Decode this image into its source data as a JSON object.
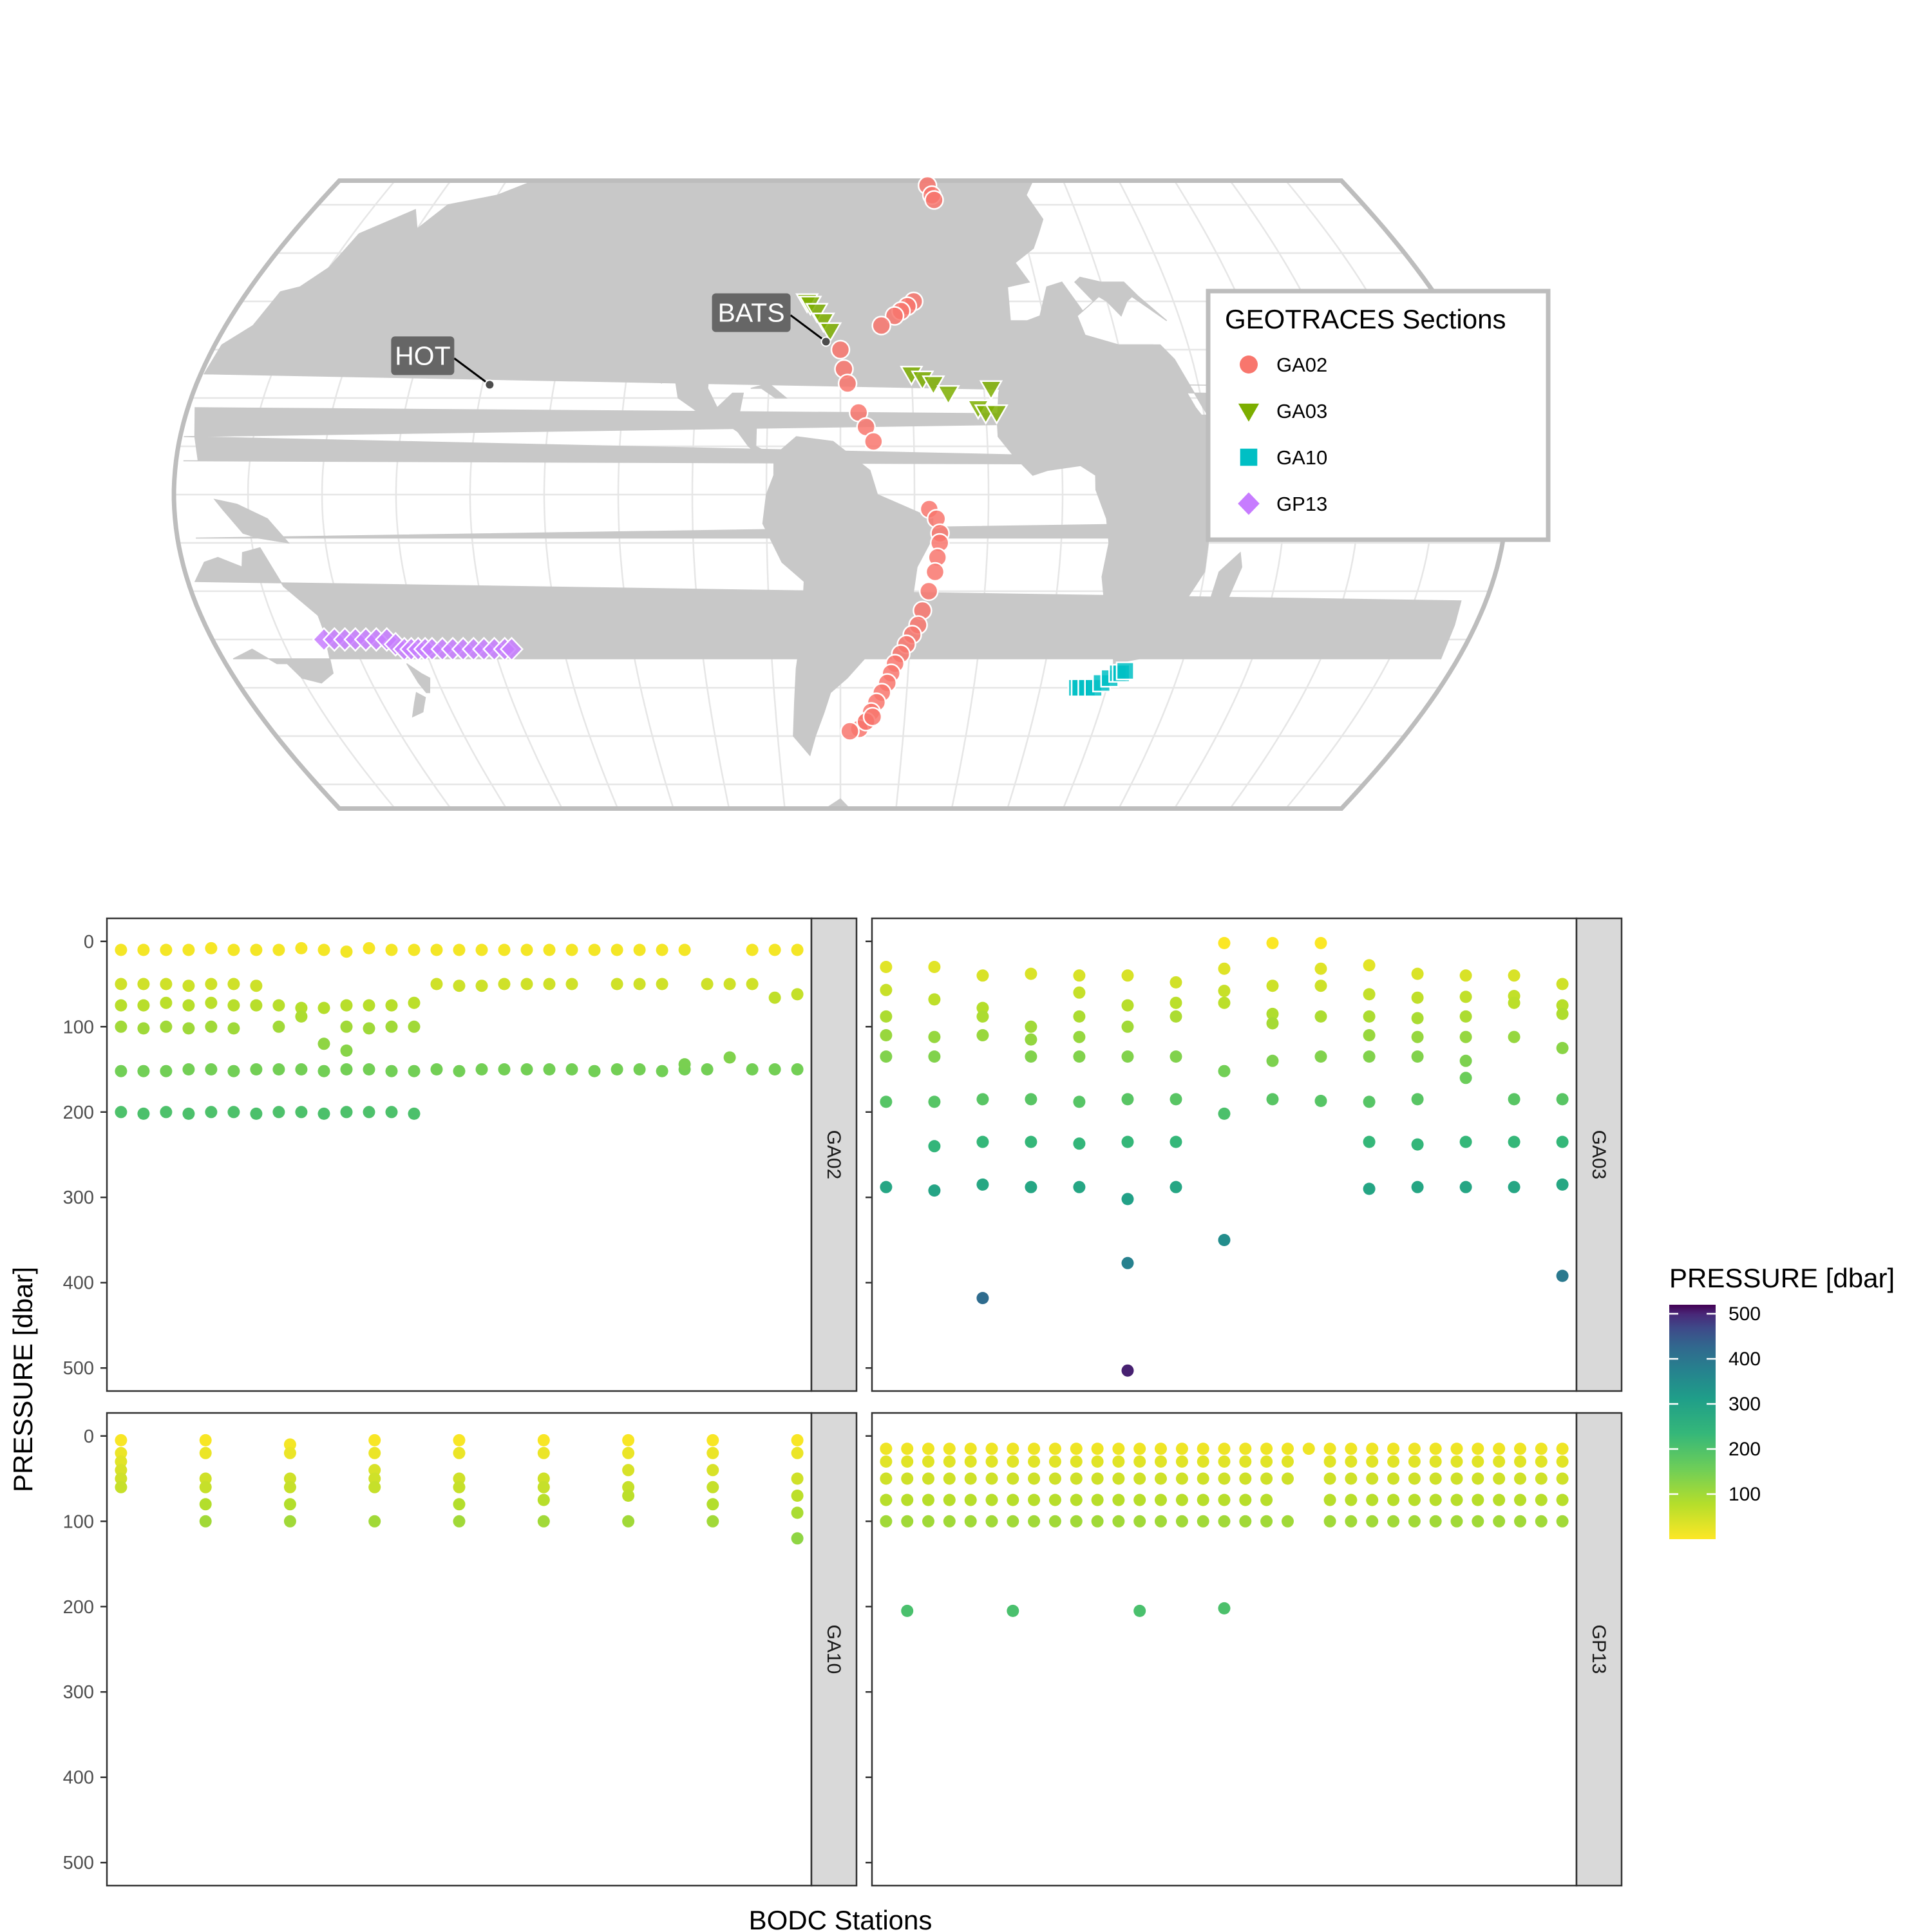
{
  "chart_data": [
    {
      "type": "map",
      "legend": {
        "title": "GEOTRACES Sections",
        "placement": "right",
        "entries": [
          {
            "name": "GA02",
            "shape": "circle",
            "color": "#F8766D"
          },
          {
            "name": "GA03",
            "shape": "triangle-down",
            "color": "#7CAE00"
          },
          {
            "name": "GA10",
            "shape": "square",
            "color": "#00BFC4"
          },
          {
            "name": "GP13",
            "shape": "diamond",
            "color": "#C77CFF"
          }
        ]
      },
      "sites": [
        {
          "label": "HOT",
          "lon": -158.0,
          "lat": 22.75
        },
        {
          "label": "BATS",
          "lon": -64.17,
          "lat": 31.67
        }
      ],
      "series": [
        {
          "name": "GA02",
          "lonlat": [
            [
              -29,
              64
            ],
            [
              -28,
              62
            ],
            [
              -27.5,
              61
            ],
            [
              -38,
              40
            ],
            [
              -40,
              39
            ],
            [
              -42,
              38
            ],
            [
              -44,
              37
            ],
            [
              -48,
              35
            ],
            [
              -60,
              30
            ],
            [
              -59,
              26
            ],
            [
              -58,
              23
            ],
            [
              -55,
              17
            ],
            [
              -53,
              14
            ],
            [
              -51,
              11
            ],
            [
              -36,
              -3
            ],
            [
              -34,
              -5
            ],
            [
              -33,
              -8
            ],
            [
              -33,
              -10
            ],
            [
              -33.5,
              -13
            ],
            [
              -34,
              -16
            ],
            [
              -35.5,
              -20
            ],
            [
              -37,
              -24
            ],
            [
              -38,
              -27
            ],
            [
              -39.5,
              -29
            ],
            [
              -41,
              -31
            ],
            [
              -42.5,
              -33
            ],
            [
              -44,
              -35
            ],
            [
              -45,
              -37
            ],
            [
              -46,
              -39
            ],
            [
              -47.5,
              -41
            ],
            [
              -49,
              -43
            ],
            [
              -50.5,
              -45
            ],
            [
              -52,
              -47
            ],
            [
              -54,
              -48.5
            ],
            [
              -57,
              -49
            ],
            [
              -52,
              -47
            ],
            [
              -50,
              -46
            ]
          ]
        },
        {
          "name": "GA03",
          "lonlat": [
            [
              -70,
              40
            ],
            [
              -69,
              39.5
            ],
            [
              -67,
              38
            ],
            [
              -65,
              36
            ],
            [
              -63,
              34
            ],
            [
              -40,
              25
            ],
            [
              -37,
              24
            ],
            [
              -34,
              23
            ],
            [
              -30,
              21
            ],
            [
              -22,
              18
            ],
            [
              -20,
              17
            ],
            [
              -17,
              17
            ],
            [
              -18,
              22
            ]
          ]
        },
        {
          "name": "GA10",
          "lonlat": [
            [
              11,
              -40
            ],
            [
              12,
              -40
            ],
            [
              14,
              -40
            ],
            [
              16,
              -40
            ],
            [
              18,
              -39
            ],
            [
              20,
              -38
            ],
            [
              22,
              -37
            ],
            [
              23,
              -37
            ],
            [
              24,
              -36.5
            ]
          ]
        },
        {
          "name": "GP13",
          "lonlat": [
            [
              152,
              -30
            ],
            [
              155,
              -30
            ],
            [
              158,
              -30
            ],
            [
              161,
              -30
            ],
            [
              164,
              -30
            ],
            [
              167,
              -30
            ],
            [
              170,
              -30
            ],
            [
              172,
              -31
            ],
            [
              174,
              -32
            ],
            [
              176,
              -32
            ],
            [
              178,
              -32
            ],
            [
              180,
              -32
            ],
            [
              -178,
              -32
            ],
            [
              -175,
              -32
            ],
            [
              -172,
              -32
            ],
            [
              -169,
              -32
            ],
            [
              -166,
              -32
            ],
            [
              -163,
              -32
            ],
            [
              -160,
              -32
            ],
            [
              -157,
              -32
            ],
            [
              -155,
              -32
            ]
          ]
        }
      ]
    },
    {
      "type": "scatter",
      "xlabel": "BODC Stations",
      "ylabel": "PRESSURE [dbar]",
      "ylim": [
        527,
        -27
      ],
      "yticks": [
        0,
        100,
        200,
        300,
        400,
        500
      ],
      "colorbar": {
        "title": "PRESSURE [dbar]",
        "ticks": [
          100,
          200,
          300,
          400,
          500
        ],
        "range": [
          0,
          520
        ],
        "palette": "viridis-reversed"
      },
      "facets": [
        {
          "name": "GA02",
          "stations": [
            [
              10,
              50,
              75,
              100,
              152,
              200
            ],
            [
              10,
              50,
              75,
              102,
              152,
              202
            ],
            [
              10,
              50,
              72,
              100,
              152,
              200
            ],
            [
              10,
              52,
              75,
              102,
              150,
              202
            ],
            [
              8,
              50,
              72,
              100,
              150,
              200
            ],
            [
              10,
              50,
              75,
              102,
              152,
              200
            ],
            [
              10,
              52,
              75,
              150,
              202
            ],
            [
              10,
              100,
              75,
              150,
              200
            ],
            [
              8,
              78,
              88,
              150,
              200
            ],
            [
              10,
              78,
              120,
              152,
              202
            ],
            [
              12,
              75,
              100,
              128,
              150,
              200
            ],
            [
              8,
              75,
              102,
              150,
              200
            ],
            [
              10,
              75,
              100,
              152,
              200
            ],
            [
              10,
              72,
              100,
              152,
              202
            ],
            [
              10,
              50,
              150
            ],
            [
              10,
              52,
              152
            ],
            [
              10,
              52,
              150
            ],
            [
              10,
              50,
              150
            ],
            [
              10,
              50,
              150
            ],
            [
              10,
              50,
              150
            ],
            [
              10,
              50,
              150
            ],
            [
              10,
              152
            ],
            [
              10,
              50,
              150
            ],
            [
              10,
              50,
              150
            ],
            [
              10,
              50,
              152
            ],
            [
              10,
              150,
              144
            ],
            [
              50,
              150
            ],
            [
              50,
              136
            ],
            [
              10,
              50,
              150
            ],
            [
              10,
              66,
              150
            ],
            [
              10,
              62,
              150
            ]
          ]
        },
        {
          "name": "GA03",
          "stations": [
            [
              30,
              57,
              88,
              110,
              135,
              188,
              288
            ],
            [
              30,
              68,
              112,
              135,
              188,
              240,
              292
            ],
            [
              40,
              78,
              88,
              110,
              185,
              235,
              285,
              418
            ],
            [
              38,
              100,
              115,
              135,
              185,
              235,
              288
            ],
            [
              40,
              60,
              88,
              112,
              135,
              188,
              237,
              288
            ],
            [
              40,
              75,
              100,
              135,
              185,
              235,
              302,
              377,
              503
            ],
            [
              48,
              72,
              88,
              135,
              185,
              235,
              288
            ],
            [
              2,
              32,
              58,
              72,
              152,
              202,
              350
            ],
            [
              2,
              52,
              85,
              96,
              140,
              185
            ],
            [
              2,
              32,
              52,
              88,
              135,
              187
            ],
            [
              28,
              62,
              88,
              110,
              135,
              188,
              235,
              290
            ],
            [
              38,
              66,
              90,
              112,
              135,
              185,
              238,
              288
            ],
            [
              40,
              65,
              88,
              112,
              140,
              160,
              235,
              288
            ],
            [
              40,
              64,
              72,
              112,
              185,
              235,
              288
            ],
            [
              50,
              75,
              85,
              125,
              185,
              235,
              285,
              392
            ]
          ]
        },
        {
          "name": "GA10",
          "stations": [
            [
              5,
              20,
              30,
              40,
              50,
              60
            ],
            [
              5,
              20,
              50,
              60,
              80,
              100
            ],
            [
              10,
              20,
              50,
              60,
              80,
              100
            ],
            [
              5,
              20,
              40,
              50,
              60,
              100
            ],
            [
              5,
              20,
              50,
              60,
              80,
              100
            ],
            [
              5,
              20,
              50,
              60,
              75,
              100
            ],
            [
              5,
              20,
              40,
              60,
              70,
              100
            ],
            [
              5,
              20,
              40,
              60,
              80,
              100
            ],
            [
              5,
              20,
              50,
              70,
              90,
              120
            ]
          ]
        },
        {
          "name": "GP13",
          "stations": [
            [
              15,
              30,
              50,
              75,
              100
            ],
            [
              15,
              30,
              50,
              75,
              100,
              205
            ],
            [
              15,
              30,
              50,
              75,
              100
            ],
            [
              15,
              30,
              50,
              75,
              100
            ],
            [
              15,
              30,
              50,
              75,
              100
            ],
            [
              15,
              30,
              50,
              75,
              100
            ],
            [
              15,
              30,
              50,
              75,
              100,
              205
            ],
            [
              15,
              30,
              50,
              75,
              100
            ],
            [
              15,
              30,
              50,
              75,
              100
            ],
            [
              15,
              30,
              50,
              75,
              100
            ],
            [
              15,
              30,
              50,
              75,
              100
            ],
            [
              15,
              30,
              50,
              75,
              100
            ],
            [
              15,
              30,
              50,
              75,
              100,
              205
            ],
            [
              15,
              30,
              50,
              75,
              100
            ],
            [
              15,
              30,
              50,
              75,
              100
            ],
            [
              15,
              30,
              50,
              75,
              100
            ],
            [
              15,
              30,
              50,
              75,
              100,
              202
            ],
            [
              15,
              30,
              50,
              75,
              100
            ],
            [
              15,
              30,
              50,
              75,
              100
            ],
            [
              15,
              30,
              50,
              100
            ],
            [
              15
            ],
            [
              15,
              30,
              50,
              75,
              100
            ],
            [
              15,
              30,
              50,
              75,
              100
            ],
            [
              15,
              30,
              50,
              75,
              100
            ],
            [
              15,
              30,
              50,
              75,
              100
            ],
            [
              15,
              30,
              50,
              75,
              100
            ],
            [
              15,
              30,
              50,
              75,
              100
            ],
            [
              15,
              30,
              50,
              75,
              100
            ],
            [
              15,
              30,
              50,
              75,
              100
            ],
            [
              15,
              30,
              50,
              75,
              100
            ],
            [
              15,
              30,
              50,
              75,
              100
            ],
            [
              15,
              30,
              50,
              75,
              100
            ],
            [
              15,
              30,
              50,
              75,
              100
            ]
          ]
        }
      ]
    }
  ]
}
